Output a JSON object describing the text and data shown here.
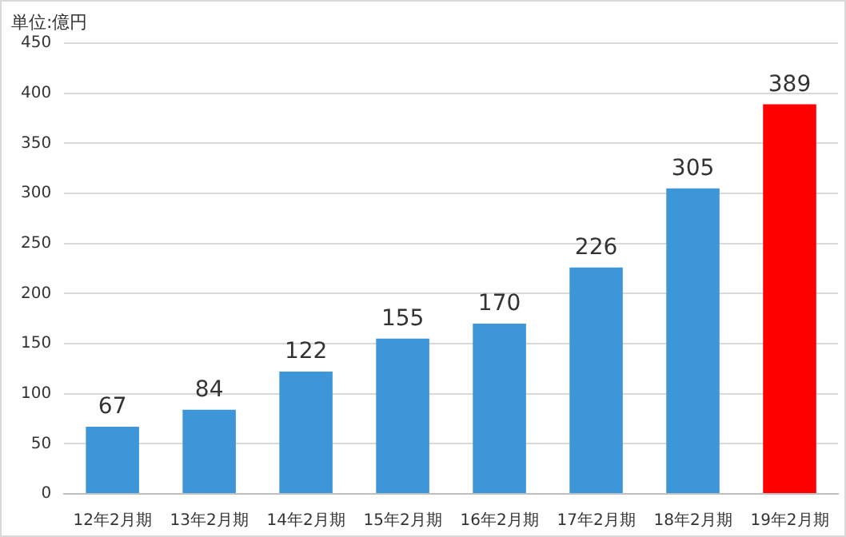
{
  "chart_data": {
    "type": "bar",
    "categories": [
      "12年2月期",
      "13年2月期",
      "14年2月期",
      "15年2月期",
      "16年2月期",
      "17年2月期",
      "18年2月期",
      "19年2月期"
    ],
    "values": [
      67,
      84,
      122,
      155,
      170,
      226,
      305,
      389
    ],
    "colors": [
      "#3c96d7",
      "#3c96d7",
      "#3c96d7",
      "#3c96d7",
      "#3c96d7",
      "#3c96d7",
      "#3c96d7",
      "#ff0000"
    ],
    "ylim": [
      0,
      450
    ],
    "yticks": [
      0,
      50,
      100,
      150,
      200,
      250,
      300,
      350,
      400,
      450
    ],
    "grid": "y",
    "data_labels": true,
    "annotations": [
      "単位:億円"
    ]
  }
}
